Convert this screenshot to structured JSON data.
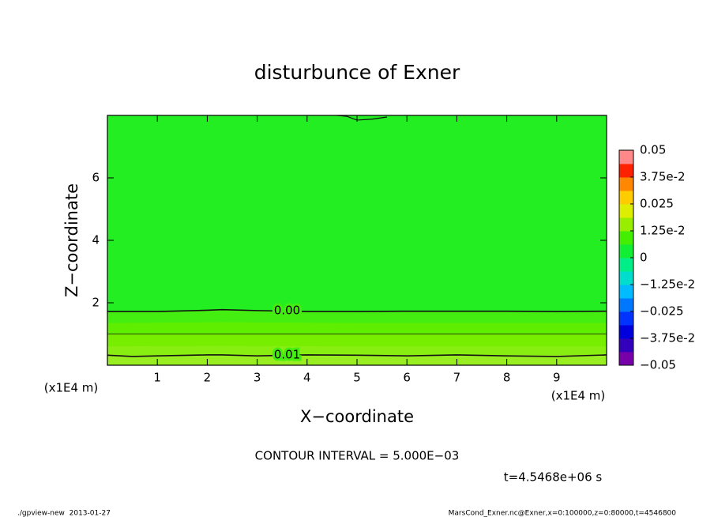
{
  "chart_data": {
    "type": "contour",
    "title": "disturbunce of Exner",
    "xlabel": "X−coordinate",
    "ylabel": "Z−coordinate",
    "x_unit_labels": [
      "(x1E4 m)",
      "(x1E4 m)"
    ],
    "xlim": [
      0,
      10
    ],
    "ylim": [
      0,
      8
    ],
    "xticks": [
      1,
      2,
      3,
      4,
      5,
      6,
      7,
      8,
      9
    ],
    "yticks": [
      2,
      4,
      6
    ],
    "fill_x": [
      0,
      2.3,
      5,
      10
    ],
    "fills": [
      {
        "color": "#22ee22",
        "y": [
          8,
          8,
          8,
          8
        ]
      },
      {
        "color": "#44ee11",
        "y": [
          1.72,
          1.78,
          1.72,
          1.73
        ]
      },
      {
        "color": "#5fee00",
        "y": [
          1.35,
          1.38,
          1.35,
          1.35
        ]
      },
      {
        "color": "#77ee00",
        "y": [
          1.0,
          1.0,
          1.0,
          1.0
        ]
      },
      {
        "color": "#88ee11",
        "y": [
          0.6,
          0.62,
          0.6,
          0.6
        ]
      },
      {
        "color": "#99ee22",
        "y": [
          0.3,
          0.33,
          0.32,
          0.33
        ]
      }
    ],
    "contours": [
      {
        "label": "0.00",
        "width": 1.6,
        "x": [
          0,
          1,
          2,
          2.3,
          3,
          4,
          5,
          6,
          7,
          8,
          9,
          10
        ],
        "y": [
          1.72,
          1.72,
          1.76,
          1.78,
          1.75,
          1.72,
          1.72,
          1.73,
          1.73,
          1.73,
          1.72,
          1.73
        ]
      },
      {
        "width": 0.8,
        "x": [
          0,
          10
        ],
        "y": [
          1.0,
          1.0
        ]
      },
      {
        "label": "0.01",
        "width": 1.6,
        "x": [
          0,
          0.5,
          1,
          2,
          2.3,
          3,
          4,
          5,
          6,
          7,
          8,
          9,
          10
        ],
        "y": [
          0.32,
          0.28,
          0.3,
          0.33,
          0.33,
          0.3,
          0.33,
          0.32,
          0.3,
          0.33,
          0.3,
          0.28,
          0.33
        ]
      },
      {
        "width": 1.2,
        "x": [
          4.6,
          4.8,
          5.0,
          5.3,
          5.6
        ],
        "y": [
          8.0,
          7.97,
          7.85,
          7.88,
          7.95
        ]
      }
    ],
    "colorbar": {
      "lim": [
        -0.05,
        0.05
      ],
      "colors": [
        "#7700aa",
        "#3300bb",
        "#0000dd",
        "#0033ff",
        "#0077ff",
        "#00bbff",
        "#00ddcc",
        "#00ee88",
        "#11ee33",
        "#44ee00",
        "#99ee00",
        "#ddee00",
        "#ffcc00",
        "#ff8800",
        "#ff2200",
        "#ff8888"
      ],
      "ticks": [
        0.05,
        {
          "value": 0.0375,
          "label": "3.75e-2"
        },
        0.025,
        {
          "value": 0.0125,
          "label": "1.25e-2"
        },
        0,
        {
          "value": -0.0125,
          "label": "−1.25e-2"
        },
        {
          "value": -0.025,
          "label": "−0.025"
        },
        {
          "value": -0.0375,
          "label": "−3.75e-2"
        },
        {
          "value": -0.05,
          "label": "−0.05"
        }
      ]
    },
    "contour_interval": "CONTOUR INTERVAL = 5.000E−03",
    "time": "t=4.5468e+06 s",
    "footer_left": "./gpview-new  2013-01-27",
    "footer_right": "MarsCond_Exner.nc@Exner,x=0:100000,z=0:80000,t=4546800"
  }
}
